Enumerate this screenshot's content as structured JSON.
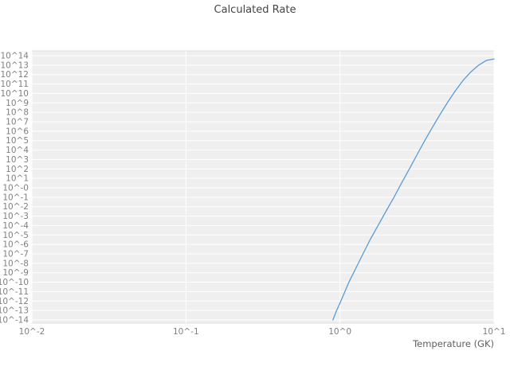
{
  "chart_data": {
    "type": "line",
    "title": "Calculated Rate",
    "xlabel": "Temperature (GK)",
    "ylabel": "",
    "x_scale": "log",
    "y_scale": "log",
    "xlim": [
      0.01,
      10
    ],
    "ylim_log10": [
      -14,
      14
    ],
    "grid": true,
    "legend": "none",
    "x_tick_labels": [
      "10^-2",
      "10^-1",
      "10^0",
      "10^1"
    ],
    "x_tick_values": [
      0.01,
      0.1,
      1,
      10
    ],
    "y_tick_labels": [
      "10^14",
      "10^13",
      "10^12",
      "10^11",
      "10^10",
      "10^9",
      "10^8",
      "10^7",
      "10^6",
      "10^5",
      "10^4",
      "10^3",
      "10^2",
      "10^1",
      "10^-0",
      "10^-1",
      "10^-2",
      "10^-3",
      "10^-4",
      "10^-5",
      "10^-6",
      "10^-7",
      "10^-8",
      "10^-9",
      "10^-10",
      "10^-11",
      "10^-12",
      "10^-13",
      "10^-14"
    ],
    "y_tick_log10": [
      14,
      13,
      12,
      11,
      10,
      9,
      8,
      7,
      6,
      5,
      4,
      3,
      2,
      1,
      0,
      -1,
      -2,
      -3,
      -4,
      -5,
      -6,
      -7,
      -8,
      -9,
      -10,
      -11,
      -12,
      -13,
      -14
    ],
    "colors": {
      "line": "#5b9bd5",
      "plot_background": "#efefef",
      "gridline": "#ffffff",
      "plot_border": "#dcdcdc",
      "tick_text": "#7f7f7f",
      "title_text": "#454545"
    },
    "series": [
      {
        "name": "calculated-rate",
        "x": [
          0.9,
          0.95,
          1.0,
          1.07,
          1.15,
          1.26,
          1.41,
          1.58,
          1.78,
          2.0,
          2.24,
          2.51,
          2.82,
          3.16,
          3.55,
          3.98,
          4.47,
          5.01,
          5.62,
          6.31,
          7.08,
          7.94,
          8.91,
          10.0
        ],
        "log10_y": [
          -14.0,
          -13.0,
          -12.2,
          -11.1,
          -9.9,
          -8.6,
          -7.0,
          -5.4,
          -3.9,
          -2.4,
          -1.0,
          0.5,
          2.0,
          3.5,
          5.0,
          6.4,
          7.8,
          9.1,
          10.3,
          11.4,
          12.3,
          13.0,
          13.5,
          13.65
        ]
      }
    ]
  }
}
